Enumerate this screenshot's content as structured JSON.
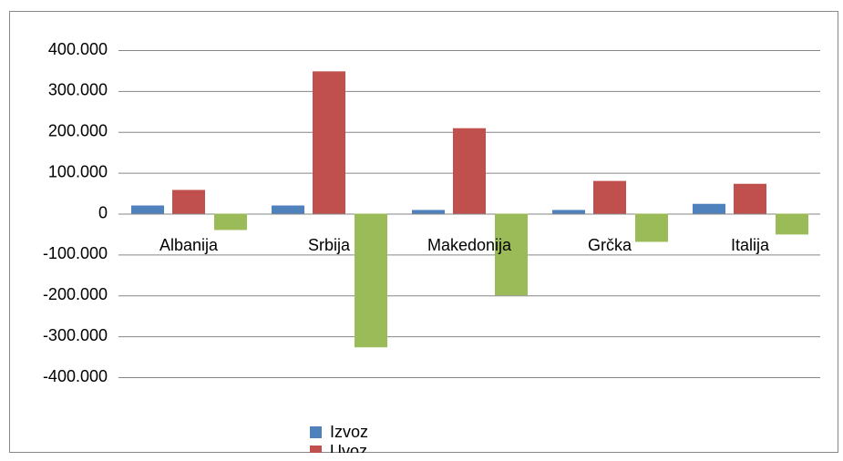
{
  "chart_data": {
    "type": "bar",
    "categories": [
      "Albanija",
      "Srbija",
      "Makedonija",
      "Grčka",
      "Italija"
    ],
    "series": [
      {
        "name": "Izvoz",
        "color": "#4f81bd",
        "values": [
          20000,
          20000,
          9000,
          9000,
          24000
        ]
      },
      {
        "name": "Uvoz",
        "color": "#c0504d",
        "values": [
          58000,
          348000,
          209000,
          80000,
          73000
        ]
      },
      {
        "color": "#9bbb59",
        "values": [
          -40000,
          -327000,
          -200000,
          -69000,
          -51000
        ]
      }
    ],
    "ylim": [
      -400000,
      400000
    ],
    "yticks": [
      {
        "value": -400000,
        "label": "-400.000"
      },
      {
        "value": -300000,
        "label": "-300.000"
      },
      {
        "value": -200000,
        "label": "-200.000"
      },
      {
        "value": -100000,
        "label": "-100.000"
      },
      0,
      {
        "value": 100000,
        "label": "100.000"
      },
      {
        "value": 200000,
        "label": "200.000"
      },
      {
        "value": 300000,
        "label": "300.000"
      },
      {
        "value": 400000,
        "label": "400.000"
      }
    ],
    "grid": true
  }
}
